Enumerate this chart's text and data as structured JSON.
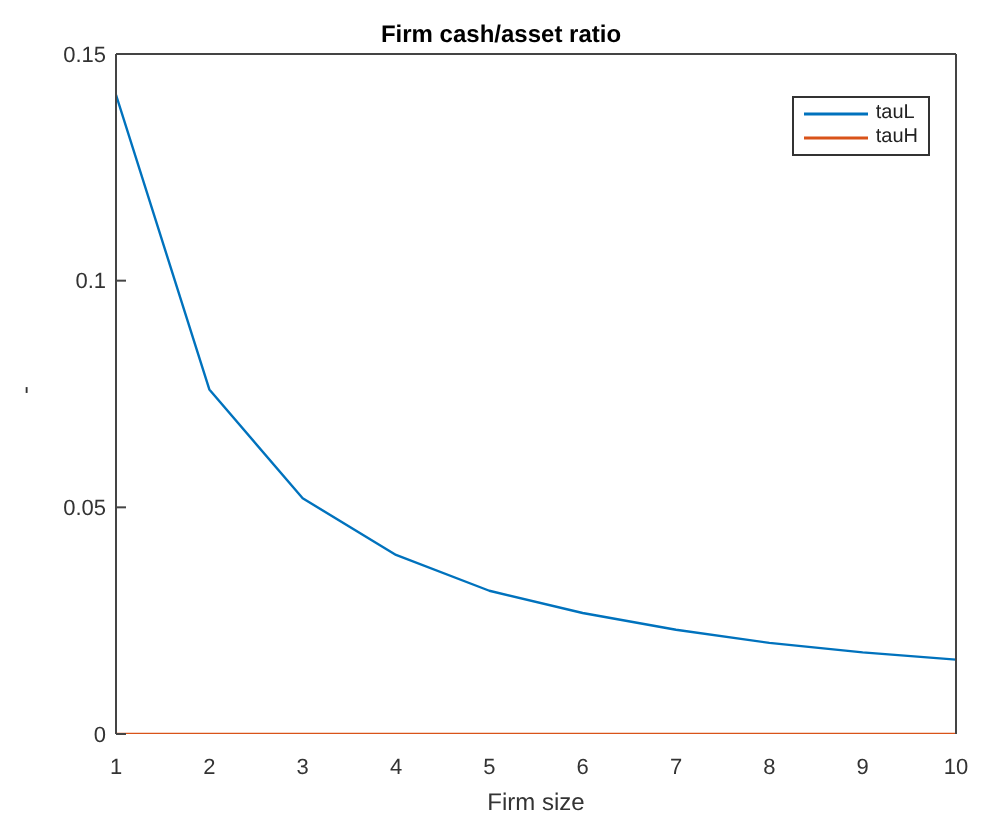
{
  "chart_data": {
    "type": "line",
    "title": "Firm cash/asset ratio",
    "xlabel": "Firm size",
    "ylabel": "-",
    "x": [
      1,
      2,
      3,
      4,
      5,
      6,
      7,
      8,
      9,
      10
    ],
    "series": [
      {
        "name": "tauL",
        "color": "#0072bd",
        "values": [
          0.141,
          0.076,
          0.052,
          0.0395,
          0.0316,
          0.0267,
          0.023,
          0.0201,
          0.018,
          0.0164
        ]
      },
      {
        "name": "tauH",
        "color": "#d95319",
        "values": [
          0,
          0,
          0,
          0,
          0,
          0,
          0,
          0,
          0,
          0
        ]
      }
    ],
    "xlim": [
      1,
      10
    ],
    "xticks": [
      1,
      2,
      3,
      4,
      5,
      6,
      7,
      8,
      9,
      10
    ],
    "ylim": [
      0,
      0.15
    ],
    "yticks": [
      0,
      0.05,
      0.1,
      0.15
    ],
    "grid": false,
    "legend": "top right",
    "marker": "none",
    "line_style": "solid"
  }
}
